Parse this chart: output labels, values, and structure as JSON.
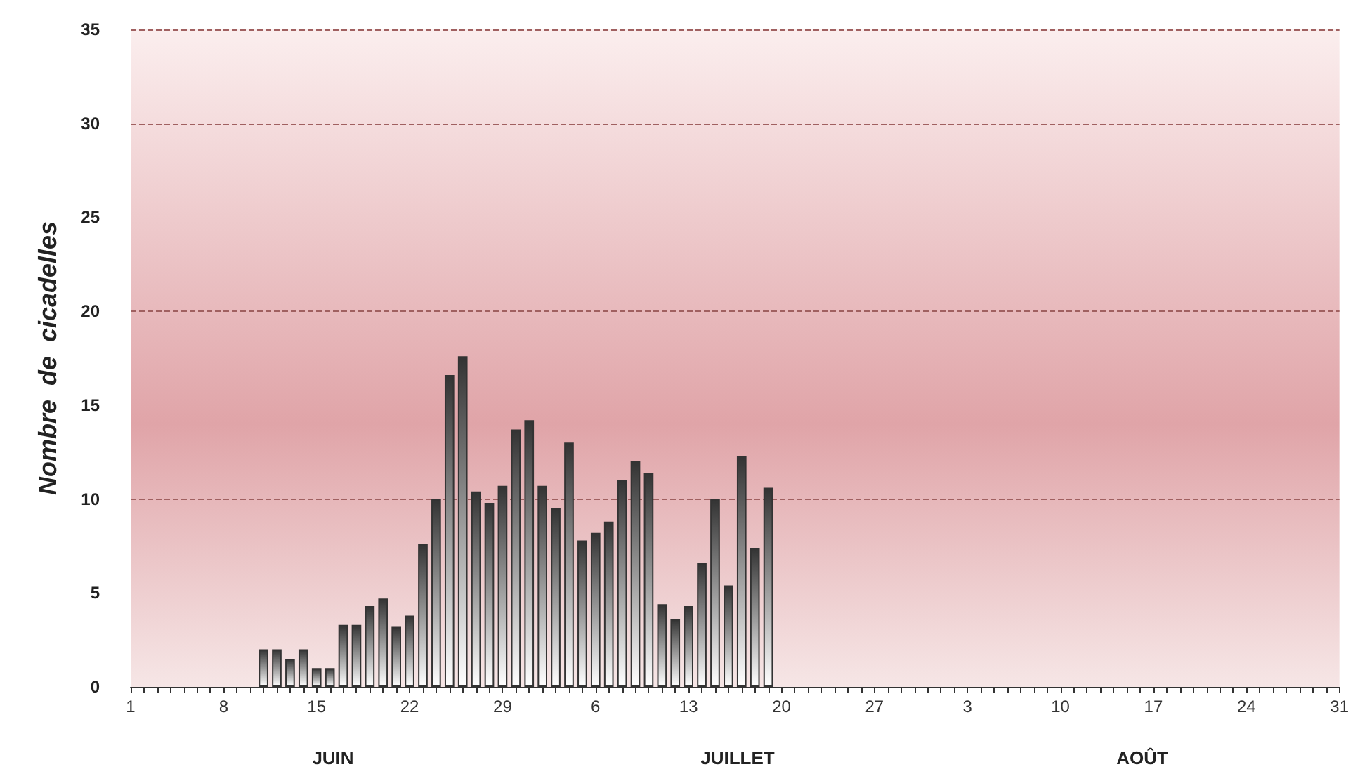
{
  "chart_data": {
    "type": "bar",
    "ylabel": "Nombre  de  cicadelles",
    "x": [
      "--06-11",
      "--06-12",
      "--06-13",
      "--06-14",
      "--06-15",
      "--06-16",
      "--06-17",
      "--06-18",
      "--06-19",
      "--06-20",
      "--06-21",
      "--06-22",
      "--06-23",
      "--06-24",
      "--06-25",
      "--06-26",
      "--06-27",
      "--06-28",
      "--06-29",
      "--06-30",
      "--07-01",
      "--07-02",
      "--07-03",
      "--07-04",
      "--07-05",
      "--07-06",
      "--07-07",
      "--07-08",
      "--07-09",
      "--07-10",
      "--07-11",
      "--07-12",
      "--07-13",
      "--07-14",
      "--07-15",
      "--07-16",
      "--07-17",
      "--07-18",
      "--07-19"
    ],
    "values": [
      2,
      2,
      1.5,
      2,
      1,
      1,
      3.3,
      3.3,
      4.3,
      4.7,
      3.2,
      3.8,
      7.6,
      10,
      16.6,
      17.6,
      10.4,
      9.8,
      10.7,
      13.7,
      14.2,
      10.7,
      9.5,
      13,
      7.8,
      8.2,
      8.8,
      11,
      12,
      11.4,
      4.4,
      3.6,
      4.3,
      6.6,
      10,
      5.4,
      12.3,
      7.4,
      10.6
    ],
    "color": "#333333",
    "xlim": [
      "--06-01",
      "--08-31"
    ],
    "xticks": [
      {
        "value": "--06-01",
        "label": "1"
      },
      {
        "value": "--06-08",
        "label": "8"
      },
      {
        "value": "--06-15",
        "label": "15"
      },
      {
        "value": "--06-22",
        "label": "22"
      },
      {
        "value": "--06-29",
        "label": "29"
      },
      {
        "value": "--07-06",
        "label": "6"
      },
      {
        "value": "--07-13",
        "label": "13"
      },
      {
        "value": "--07-20",
        "label": "20"
      },
      {
        "value": "--07-27",
        "label": "27"
      },
      {
        "value": "--08-03",
        "label": "3"
      },
      {
        "value": "--08-10",
        "label": "10"
      },
      {
        "value": "--08-17",
        "label": "17"
      },
      {
        "value": "--08-24",
        "label": "24"
      },
      {
        "value": "--08-31",
        "label": "31"
      }
    ],
    "ylim": [
      0,
      35
    ],
    "yticks": [
      0,
      5,
      10,
      15,
      20,
      25,
      30,
      35
    ],
    "grid": "y",
    "annotations": [
      "JUIN",
      "JUILLET",
      "AOÛT"
    ]
  }
}
